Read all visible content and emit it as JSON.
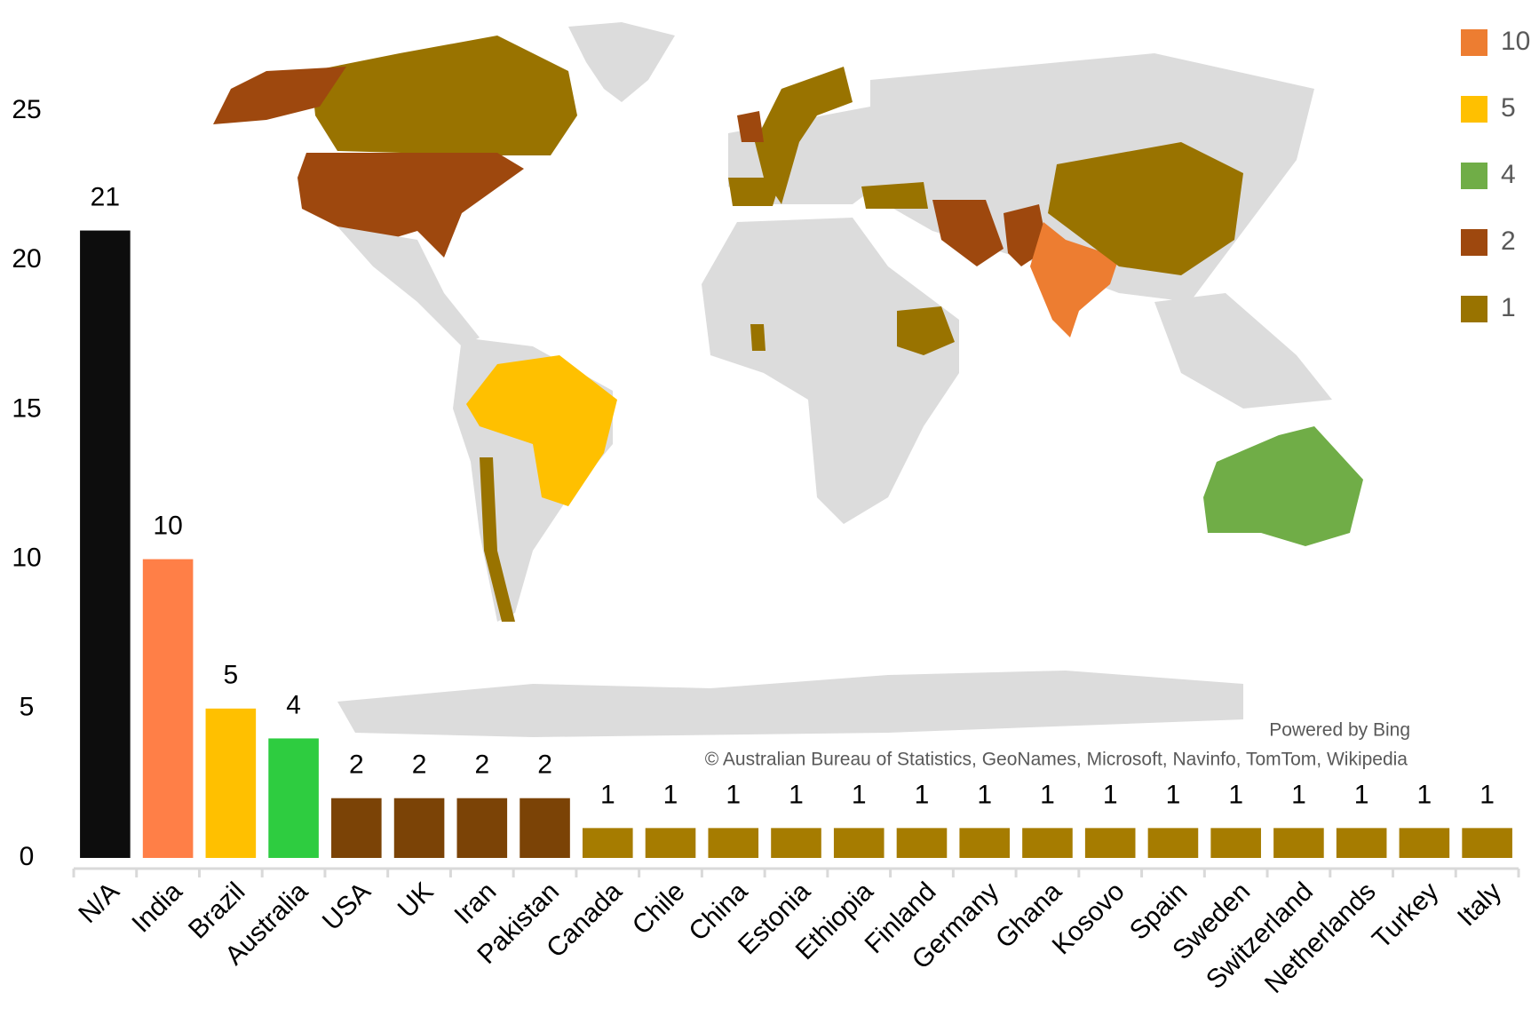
{
  "chart_data": {
    "type": "bar",
    "categories": [
      "N/A",
      "India",
      "Brazil",
      "Australia",
      "USA",
      "UK",
      "Iran",
      "Pakistan",
      "Canada",
      "Chile",
      "China",
      "Estonia",
      "Ethiopia",
      "Finland",
      "Germany",
      "Ghana",
      "Kosovo",
      "Spain",
      "Sweden",
      "Switzerland",
      "Netherlands",
      "Turkey",
      "Italy"
    ],
    "values": [
      21,
      10,
      5,
      4,
      2,
      2,
      2,
      2,
      1,
      1,
      1,
      1,
      1,
      1,
      1,
      1,
      1,
      1,
      1,
      1,
      1,
      1,
      1
    ],
    "colors": [
      "#0d0d0d",
      "#ff7f47",
      "#ffc000",
      "#2ecc40",
      "#7b4306",
      "#7b4306",
      "#7b4306",
      "#7b4306",
      "#a67c00",
      "#a67c00",
      "#a67c00",
      "#a67c00",
      "#a67c00",
      "#a67c00",
      "#a67c00",
      "#a67c00",
      "#a67c00",
      "#a67c00",
      "#a67c00",
      "#a67c00",
      "#a67c00",
      "#a67c00",
      "#a67c00"
    ],
    "ylim": [
      0,
      25
    ],
    "yticks": [
      0,
      5,
      10,
      15,
      20,
      25
    ],
    "grid": false,
    "map_legend": [
      {
        "value": 10,
        "color": "#ed7d31"
      },
      {
        "value": 5,
        "color": "#ffc000"
      },
      {
        "value": 4,
        "color": "#70ad47"
      },
      {
        "value": 2,
        "color": "#9e480e"
      },
      {
        "value": 1,
        "color": "#997300"
      }
    ],
    "map_credit": "Powered by Bing",
    "map_attribution": "© Australian  Bureau  of Statistics, GeoNames, Microsoft, Navinfo, TomTom, Wikipedia"
  }
}
